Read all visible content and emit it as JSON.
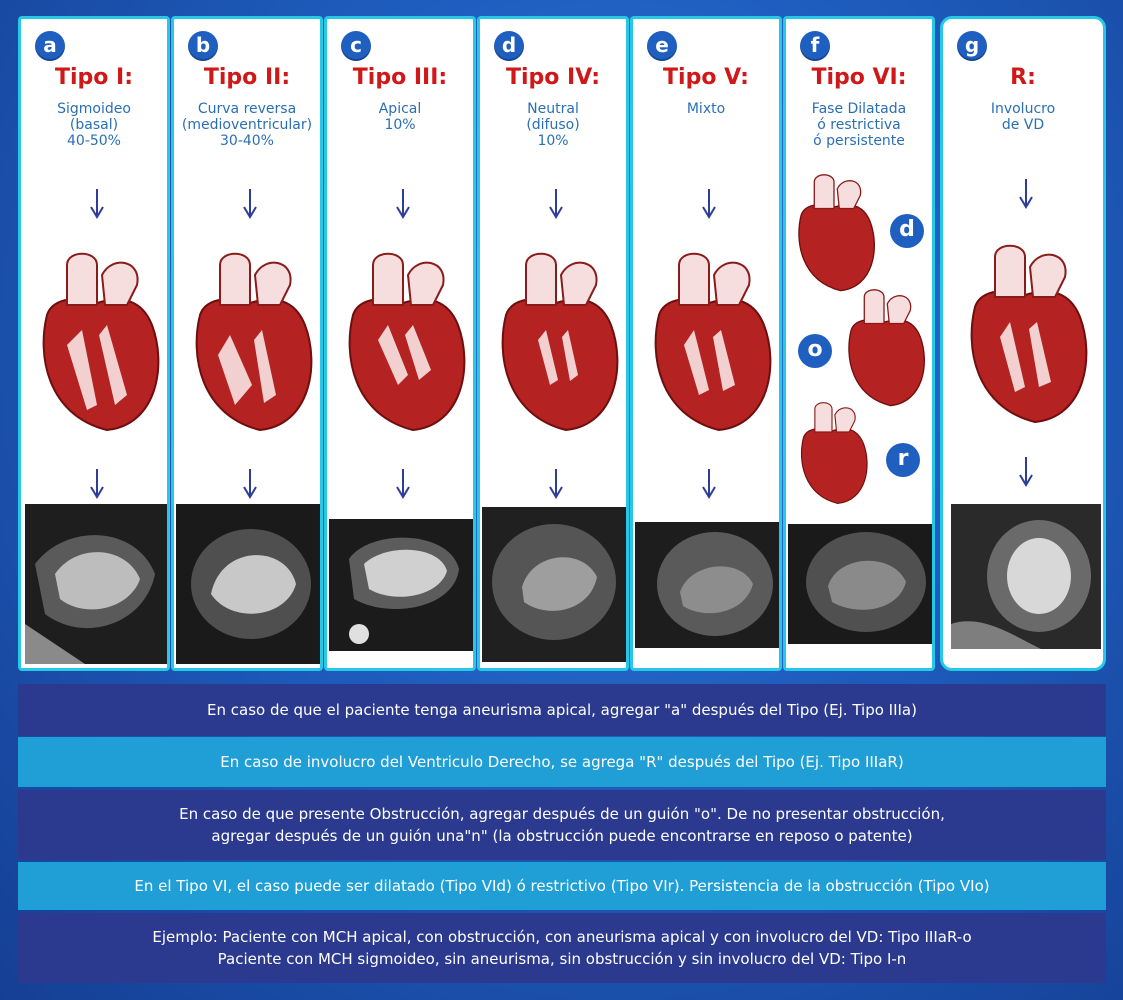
{
  "panels": [
    {
      "badge": "a",
      "tipo": "Tipo I:",
      "desc": "Sigmoideo\n(basal)\n40-50%"
    },
    {
      "badge": "b",
      "tipo": "Tipo II:",
      "desc": "Curva reversa\n(medioventricular)\n30-40%"
    },
    {
      "badge": "c",
      "tipo": "Tipo III:",
      "desc": "Apical\n10%"
    },
    {
      "badge": "d",
      "tipo": "Tipo IV:",
      "desc": "Neutral\n(difuso)\n10%"
    },
    {
      "badge": "e",
      "tipo": "Tipo V:",
      "desc": "Mixto"
    },
    {
      "badge": "f",
      "tipo": "Tipo VI:",
      "desc": "Fase Dilatada\nó restrictiva\nó persistente"
    },
    {
      "badge": "g",
      "tipo": "R:",
      "desc": "Involucro\nde VD"
    }
  ],
  "subtype_badges": [
    "d",
    "o",
    "r"
  ],
  "notes": [
    "En caso de que el paciente tenga aneurisma apical, agregar \"a\" después del Tipo (Ej. Tipo IIIa)",
    "En caso de involucro del Ventriculo Derecho, se agrega \"R\" después del Tipo (Ej. Tipo IIIaR)",
    "En caso de que presente Obstrucción, agregar después de un guión \"o\". De no presentar obstrucción,",
    "agregar después de un guión una\"n\" (la obstrucción puede encontrarse en reposo o patente)",
    "En el Tipo VI, el caso puede ser dilatado (Tipo VId) ó restrictivo (Tipo VIr). Persistencia de la obstrucción (Tipo VIo)",
    "Ejemplo: Paciente con MCH apical, con obstrucción, con aneurisma apical y con involucro del VD: Tipo IIIaR-o",
    "Paciente con MCH sigmoideo, sin aneurisma, sin obstrucción y sin involucro del VD: Tipo I-n"
  ],
  "colors": {
    "background": "#1f5fc0",
    "panel_border": "#27c7e8",
    "tipo_text": "#d01818",
    "desc_text": "#2a6fb4",
    "band_dark": "#2b3a8f",
    "band_light": "#1f9fd6"
  }
}
